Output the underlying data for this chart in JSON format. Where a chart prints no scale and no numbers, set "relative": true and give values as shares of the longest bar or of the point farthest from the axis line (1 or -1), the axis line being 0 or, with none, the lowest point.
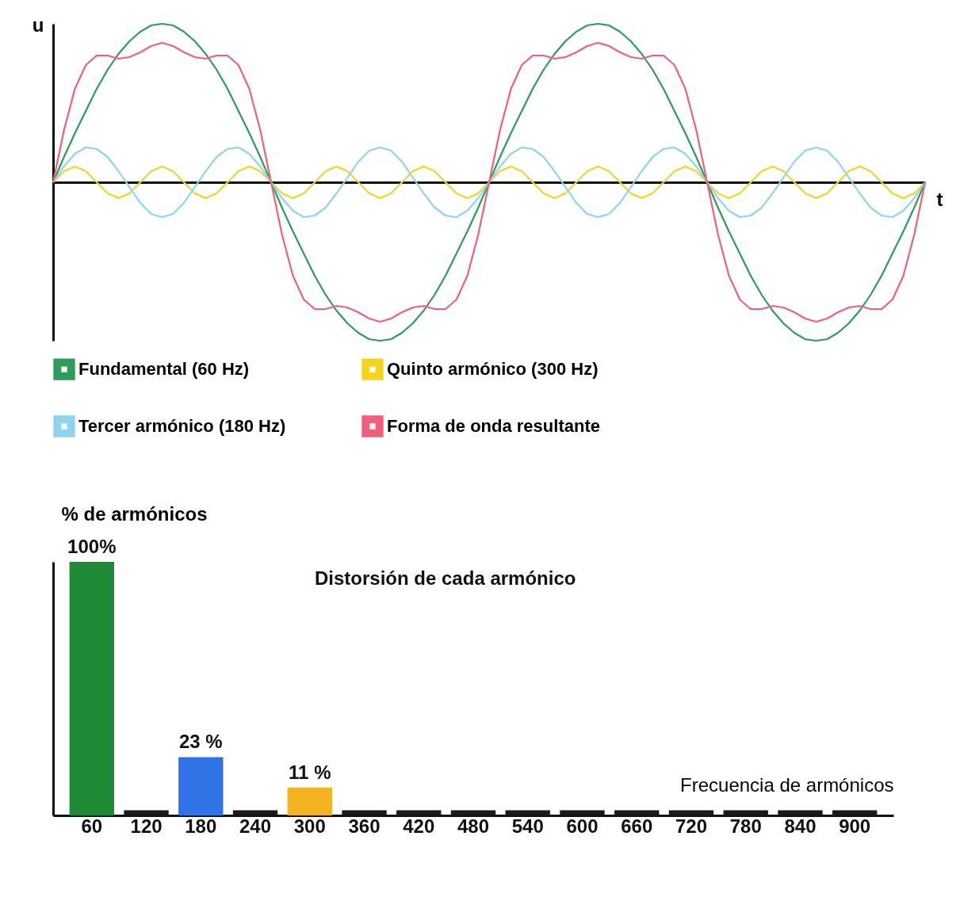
{
  "chart_data": [
    {
      "type": "line",
      "relative": true,
      "xlabel": "t",
      "ylabel": "u",
      "legend": "bottom",
      "tick_labels": false,
      "grid": false,
      "categories": [
        null,
        null,
        null,
        null,
        null,
        null,
        null,
        null,
        null,
        null,
        null,
        null,
        null,
        null,
        null,
        null,
        null,
        null,
        null,
        null,
        null,
        null,
        null,
        null,
        null,
        null,
        null,
        null,
        null,
        null,
        null,
        null,
        null,
        null,
        null,
        null,
        null,
        null,
        null,
        null,
        null,
        null,
        null,
        null,
        null,
        null,
        null,
        null,
        null,
        null,
        null,
        null,
        null,
        null,
        null,
        null,
        null,
        null,
        null,
        null,
        null,
        null,
        null,
        null,
        null,
        null,
        null,
        null,
        null,
        null,
        null,
        null,
        null,
        null,
        null,
        null,
        null,
        null,
        null,
        null,
        null
      ],
      "series": [
        {
          "name": "Fundamental (60 Hz)",
          "color": "#2e9b58",
          "values": [
            0,
            0.16,
            0.31,
            0.45,
            0.59,
            0.71,
            0.81,
            0.89,
            0.95,
            0.99,
            1,
            0.99,
            0.95,
            0.89,
            0.81,
            0.71,
            0.59,
            0.45,
            0.31,
            0.16,
            0,
            -0.16,
            -0.31,
            -0.45,
            -0.59,
            -0.71,
            -0.81,
            -0.89,
            -0.95,
            -0.99,
            -1,
            -0.99,
            -0.95,
            -0.89,
            -0.81,
            -0.71,
            -0.59,
            -0.45,
            -0.31,
            -0.16,
            0,
            0.16,
            0.31,
            0.45,
            0.59,
            0.71,
            0.81,
            0.89,
            0.95,
            0.99,
            1,
            0.99,
            0.95,
            0.89,
            0.81,
            0.71,
            0.59,
            0.45,
            0.31,
            0.16,
            0,
            -0.16,
            -0.31,
            -0.45,
            -0.59,
            -0.71,
            -0.81,
            -0.89,
            -0.95,
            -0.99,
            -1,
            -0.99,
            -0.95,
            -0.89,
            -0.81,
            -0.71,
            -0.59,
            -0.45,
            -0.31,
            -0.16,
            0
          ]
        },
        {
          "name": "Quinto armónico (300 Hz)",
          "color": "#f5d51c",
          "values": [
            0,
            0.07,
            0.1,
            0.07,
            0,
            -0.07,
            -0.1,
            -0.07,
            0,
            0.07,
            0.1,
            0.07,
            0,
            -0.07,
            -0.1,
            -0.07,
            0,
            0.07,
            0.1,
            0.07,
            0,
            -0.07,
            -0.1,
            -0.07,
            0,
            0.07,
            0.1,
            0.07,
            0,
            -0.07,
            -0.1,
            -0.07,
            0,
            0.07,
            0.1,
            0.07,
            0,
            -0.07,
            -0.1,
            -0.07,
            0,
            0.07,
            0.1,
            0.07,
            0,
            -0.07,
            -0.1,
            -0.07,
            0,
            0.07,
            0.1,
            0.07,
            0,
            -0.07,
            -0.1,
            -0.07,
            0,
            0.07,
            0.1,
            0.07,
            0,
            -0.07,
            -0.1,
            -0.07,
            0,
            0.07,
            0.1,
            0.07,
            0,
            -0.07,
            -0.1,
            -0.07,
            0,
            0.07,
            0.1,
            0.07,
            0,
            -0.07,
            -0.1,
            -0.07,
            0
          ]
        },
        {
          "name": "Tercer armónico (180 Hz)",
          "color": "#8fd3f0",
          "values": [
            0,
            0.1,
            0.18,
            0.22,
            0.21,
            0.16,
            0.07,
            -0.03,
            -0.13,
            -0.2,
            -0.22,
            -0.2,
            -0.13,
            -0.03,
            0.07,
            0.16,
            0.21,
            0.22,
            0.18,
            0.1,
            0,
            -0.1,
            -0.18,
            -0.22,
            -0.21,
            -0.16,
            -0.07,
            0.03,
            0.13,
            0.2,
            0.22,
            0.2,
            0.13,
            0.03,
            -0.07,
            -0.16,
            -0.21,
            -0.22,
            -0.18,
            -0.1,
            0,
            0.1,
            0.18,
            0.22,
            0.21,
            0.16,
            0.07,
            -0.03,
            -0.13,
            -0.2,
            -0.22,
            -0.2,
            -0.13,
            -0.03,
            0.07,
            0.16,
            0.21,
            0.22,
            0.18,
            0.1,
            0,
            -0.1,
            -0.18,
            -0.22,
            -0.21,
            -0.16,
            -0.07,
            0.03,
            0.13,
            0.2,
            0.22,
            0.2,
            0.13,
            0.03,
            -0.07,
            -0.16,
            -0.21,
            -0.22,
            -0.18,
            -0.1,
            0
          ]
        },
        {
          "name": "Forma de onda resultante",
          "color": "#f0607a",
          "values": [
            0,
            0.33,
            0.59,
            0.74,
            0.8,
            0.8,
            0.78,
            0.79,
            0.82,
            0.86,
            0.88,
            0.86,
            0.82,
            0.79,
            0.78,
            0.8,
            0.8,
            0.74,
            0.59,
            0.33,
            0,
            -0.33,
            -0.59,
            -0.74,
            -0.8,
            -0.8,
            -0.78,
            -0.79,
            -0.82,
            -0.86,
            -0.88,
            -0.86,
            -0.82,
            -0.79,
            -0.78,
            -0.8,
            -0.8,
            -0.74,
            -0.59,
            -0.33,
            0,
            0.33,
            0.59,
            0.74,
            0.8,
            0.8,
            0.78,
            0.79,
            0.82,
            0.86,
            0.88,
            0.86,
            0.82,
            0.79,
            0.78,
            0.8,
            0.8,
            0.74,
            0.59,
            0.33,
            0,
            -0.33,
            -0.59,
            -0.74,
            -0.8,
            -0.8,
            -0.78,
            -0.79,
            -0.82,
            -0.86,
            -0.88,
            -0.86,
            -0.82,
            -0.79,
            -0.78,
            -0.8,
            -0.8,
            -0.74,
            -0.59,
            -0.33,
            0
          ]
        }
      ]
    },
    {
      "type": "bar",
      "ylabel": "% de armónicos",
      "xlabel": "Frecuencia de armónicos",
      "legend": false,
      "grid": false,
      "tick_labels": "x",
      "annotations": [
        "Distorsión de cada armónico"
      ],
      "categories": [
        "60",
        "120",
        "180",
        "240",
        "300",
        "360",
        "420",
        "480",
        "540",
        "600",
        "660",
        "720",
        "780",
        "840",
        "900"
      ],
      "values": [
        100,
        2,
        23,
        2,
        11,
        2,
        2,
        2,
        2,
        2,
        2,
        2,
        2,
        2,
        2
      ],
      "colors": [
        "#1f8a35",
        "#1a1a1a",
        "#2f73e6",
        "#1a1a1a",
        "#f4b321",
        "#1a1a1a",
        "#1a1a1a",
        "#1a1a1a",
        "#1a1a1a",
        "#1a1a1a",
        "#1a1a1a",
        "#1a1a1a",
        "#1a1a1a",
        "#1a1a1a",
        "#1a1a1a"
      ],
      "value_labels": [
        "100%",
        null,
        "23 %",
        null,
        "11 %",
        null,
        null,
        null,
        null,
        null,
        null,
        null,
        null,
        null,
        null
      ]
    }
  ]
}
